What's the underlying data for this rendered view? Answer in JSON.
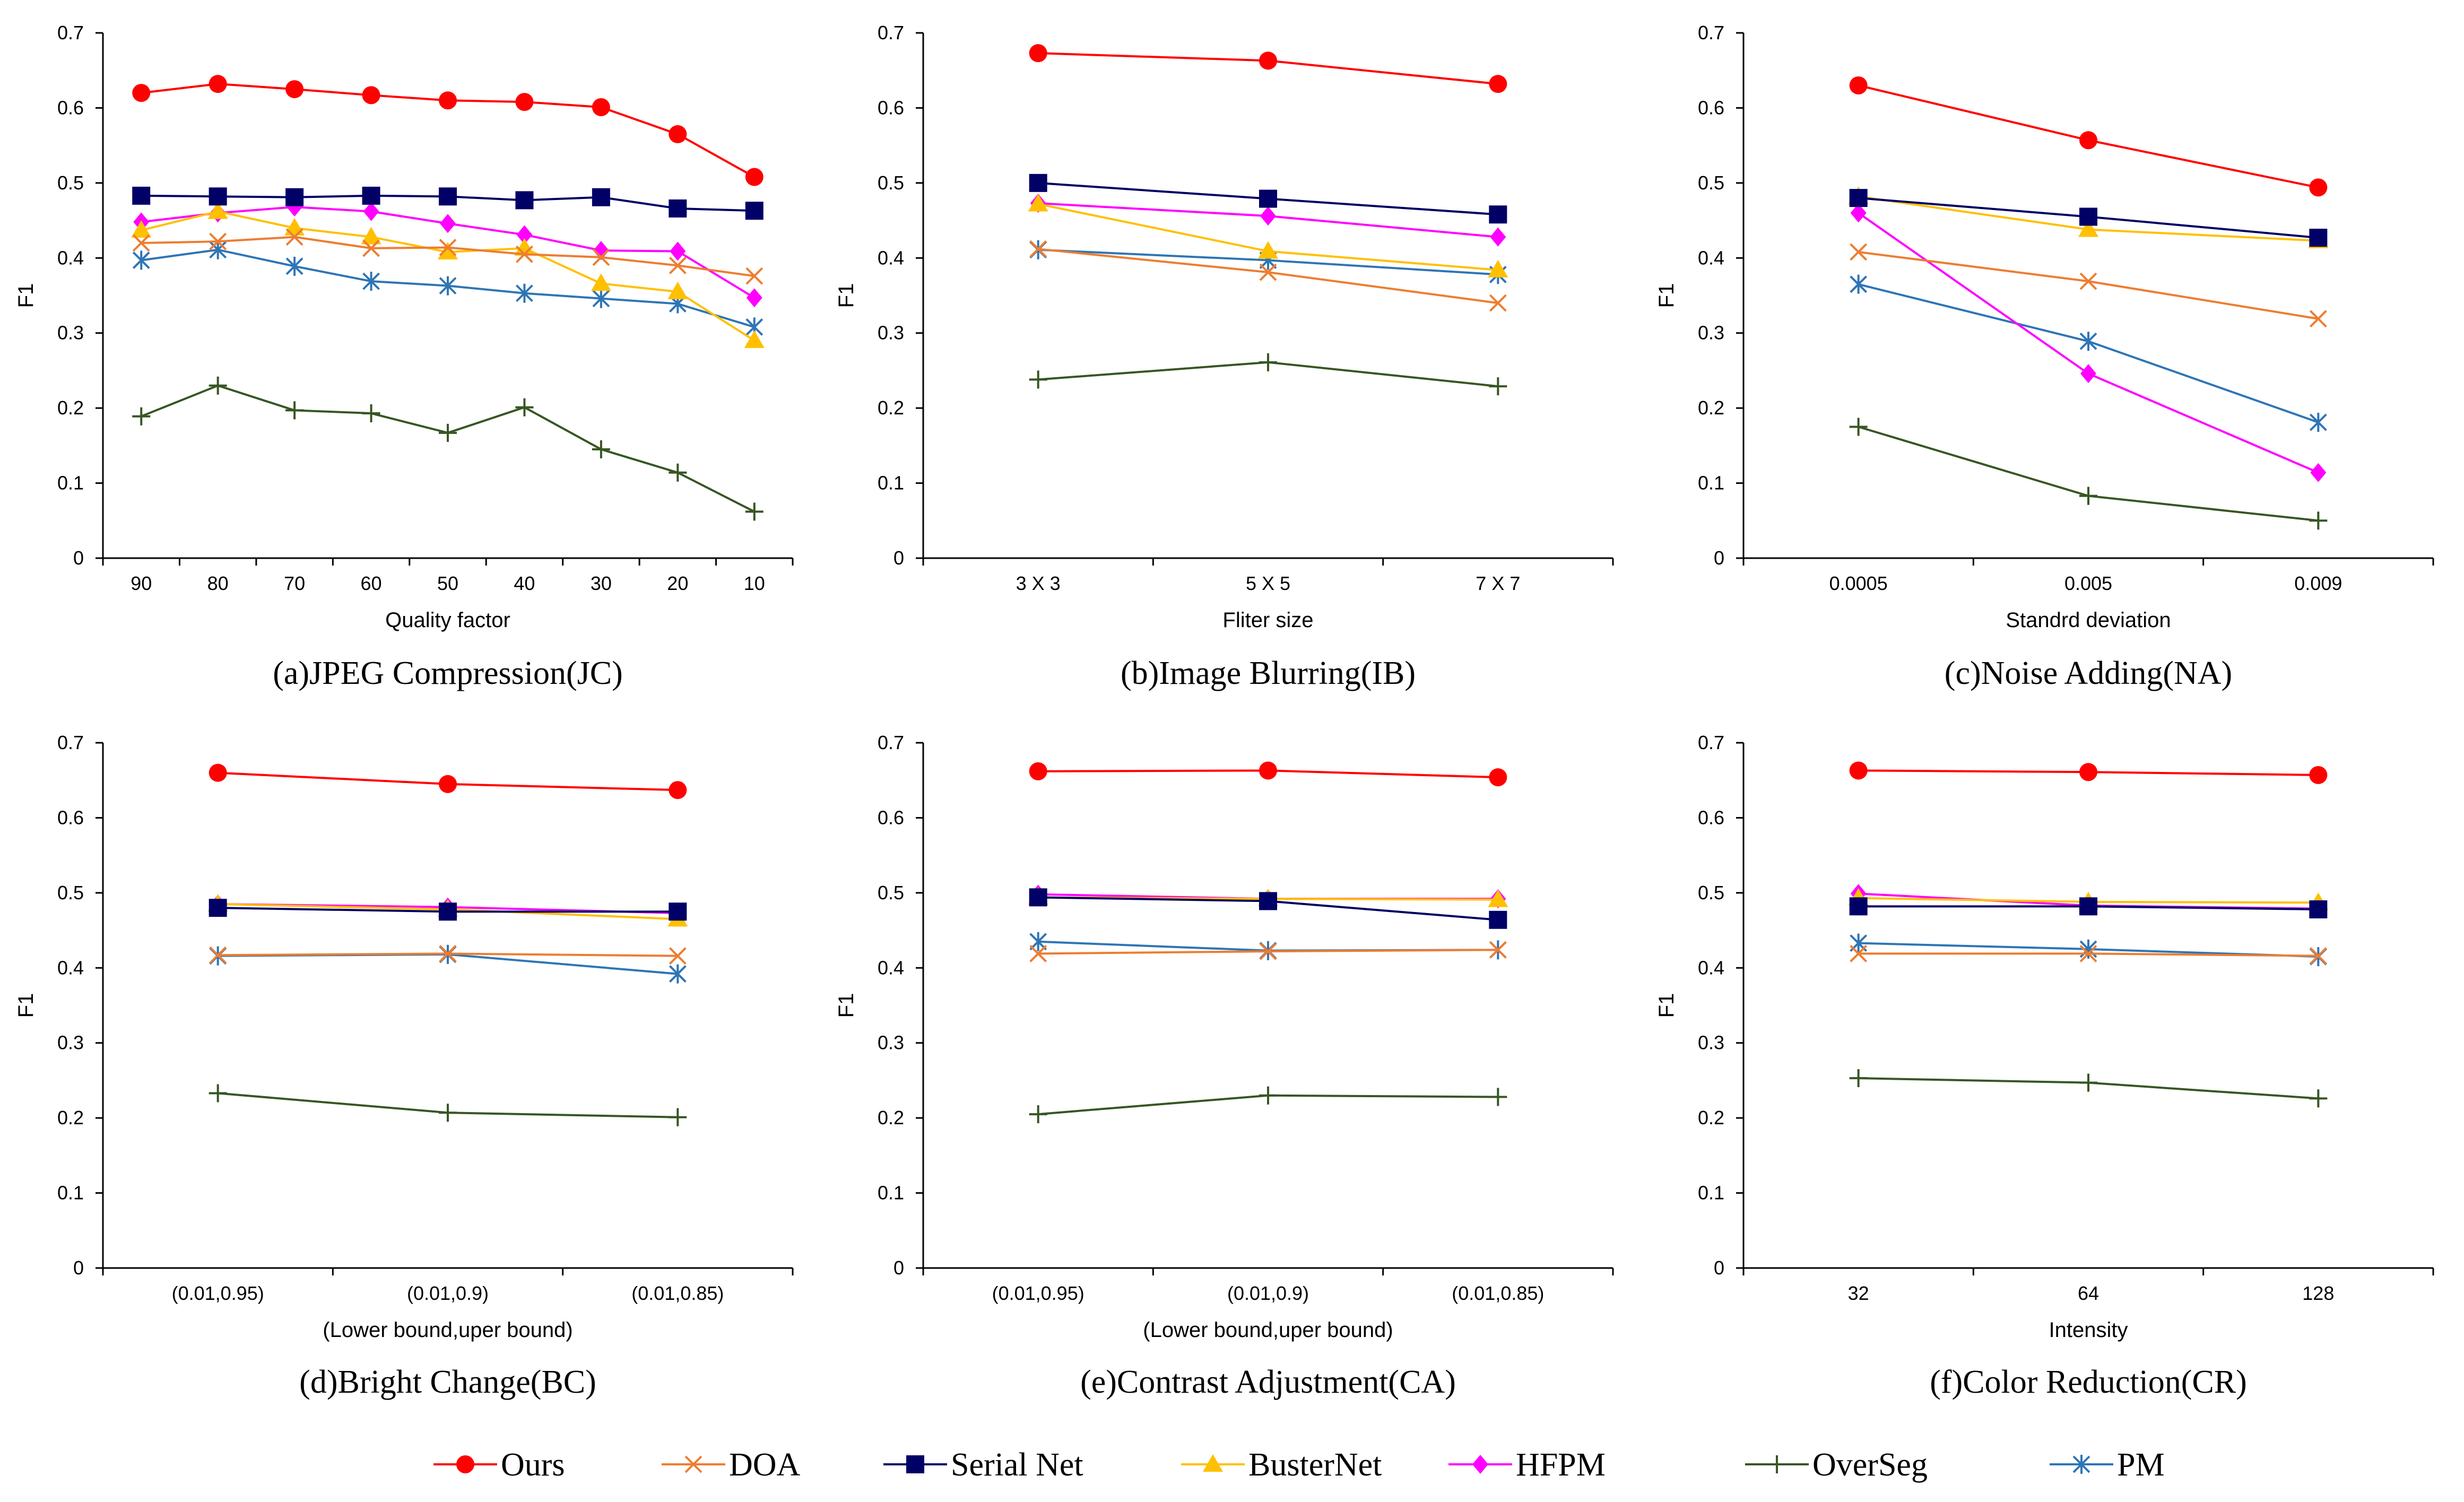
{
  "series_styles": [
    {
      "name": "Ours",
      "color": "#ff0000",
      "marker": "circle"
    },
    {
      "name": "DOA",
      "color": "#ed7d31",
      "marker": "x"
    },
    {
      "name": "Serial Net",
      "color": "#000066",
      "marker": "square"
    },
    {
      "name": "BusterNet",
      "color": "#ffc000",
      "marker": "triangle"
    },
    {
      "name": "HFPM",
      "color": "#ff00ff",
      "marker": "diamond"
    },
    {
      "name": "OverSeg",
      "color": "#375623",
      "marker": "plus"
    },
    {
      "name": "PM",
      "color": "#2e75b6",
      "marker": "star"
    }
  ],
  "legend": {
    "entries": [
      "Ours",
      "DOA",
      "Serial Net",
      "BusterNet",
      "HFPM",
      "OverSeg",
      "PM"
    ],
    "position": "bottom-center"
  },
  "chart_data": [
    {
      "type": "line",
      "caption": "(a)JPEG Compression(JC)",
      "xlabel": "Quality factor",
      "ylabel": "F1",
      "ylim": [
        0,
        0.7
      ],
      "yticks": [
        "0",
        "0.1",
        "0.2",
        "0.3",
        "0.4",
        "0.5",
        "0.6",
        "0.7"
      ],
      "categories": [
        "90",
        "80",
        "70",
        "60",
        "50",
        "40",
        "30",
        "20",
        "10"
      ],
      "series": [
        {
          "name": "Ours",
          "values": [
            0.62,
            0.632,
            0.625,
            0.617,
            0.61,
            0.608,
            0.601,
            0.565,
            0.508
          ]
        },
        {
          "name": "DOA",
          "values": [
            0.42,
            0.422,
            0.428,
            0.413,
            0.414,
            0.405,
            0.401,
            0.39,
            0.376
          ]
        },
        {
          "name": "Serial Net",
          "values": [
            0.483,
            0.482,
            0.481,
            0.483,
            0.482,
            0.477,
            0.481,
            0.466,
            0.463
          ]
        },
        {
          "name": "BusterNet",
          "values": [
            0.437,
            0.462,
            0.44,
            0.428,
            0.408,
            0.413,
            0.366,
            0.355,
            0.29
          ]
        },
        {
          "name": "HFPM",
          "values": [
            0.448,
            0.46,
            0.468,
            0.462,
            0.446,
            0.431,
            0.41,
            0.409,
            0.347
          ]
        },
        {
          "name": "OverSeg",
          "values": [
            0.189,
            0.23,
            0.197,
            0.193,
            0.167,
            0.201,
            0.145,
            0.114,
            0.062
          ]
        },
        {
          "name": "PM",
          "values": [
            0.397,
            0.411,
            0.389,
            0.369,
            0.363,
            0.353,
            0.346,
            0.339,
            0.308
          ]
        }
      ]
    },
    {
      "type": "line",
      "caption": "(b)Image Blurring(IB)",
      "xlabel": "Fliter size",
      "ylabel": "F1",
      "ylim": [
        0,
        0.7
      ],
      "yticks": [
        "0",
        "0.1",
        "0.2",
        "0.3",
        "0.4",
        "0.5",
        "0.6",
        "0.7"
      ],
      "categories": [
        "3 X 3",
        "5 X 5",
        "7 X 7"
      ],
      "series": [
        {
          "name": "Ours",
          "values": [
            0.673,
            0.663,
            0.632
          ]
        },
        {
          "name": "DOA",
          "values": [
            0.412,
            0.381,
            0.34
          ]
        },
        {
          "name": "Serial Net",
          "values": [
            0.5,
            0.479,
            0.458
          ]
        },
        {
          "name": "BusterNet",
          "values": [
            0.472,
            0.409,
            0.384
          ]
        },
        {
          "name": "HFPM",
          "values": [
            0.473,
            0.456,
            0.428
          ]
        },
        {
          "name": "OverSeg",
          "values": [
            0.238,
            0.261,
            0.229
          ]
        },
        {
          "name": "PM",
          "values": [
            0.411,
            0.397,
            0.378
          ]
        }
      ]
    },
    {
      "type": "line",
      "caption": "(c)Noise Adding(NA)",
      "xlabel": "Standrd deviation",
      "ylabel": "F1",
      "ylim": [
        0,
        0.7
      ],
      "yticks": [
        "0",
        "0.1",
        "0.2",
        "0.3",
        "0.4",
        "0.5",
        "0.6",
        "0.7"
      ],
      "categories": [
        "0.0005",
        "0.005",
        "0.009"
      ],
      "series": [
        {
          "name": "Ours",
          "values": [
            0.63,
            0.557,
            0.494
          ]
        },
        {
          "name": "DOA",
          "values": [
            0.408,
            0.369,
            0.319
          ]
        },
        {
          "name": "Serial Net",
          "values": [
            0.48,
            0.455,
            0.427
          ]
        },
        {
          "name": "BusterNet",
          "values": [
            0.482,
            0.438,
            0.423
          ]
        },
        {
          "name": "HFPM",
          "values": [
            0.46,
            0.246,
            0.114
          ]
        },
        {
          "name": "OverSeg",
          "values": [
            0.175,
            0.083,
            0.05
          ]
        },
        {
          "name": "PM",
          "values": [
            0.365,
            0.289,
            0.181
          ]
        }
      ]
    },
    {
      "type": "line",
      "caption": "(d)Bright Change(BC)",
      "xlabel": "(Lower bound,uper bound)",
      "ylabel": "F1",
      "ylim": [
        0,
        0.7
      ],
      "yticks": [
        "0",
        "0.1",
        "0.2",
        "0.3",
        "0.4",
        "0.5",
        "0.6",
        "0.7"
      ],
      "categories": [
        "(0.01,0.95)",
        "(0.01,0.9)",
        "(0.01,0.85)"
      ],
      "series": [
        {
          "name": "Ours",
          "values": [
            0.66,
            0.645,
            0.637
          ]
        },
        {
          "name": "DOA",
          "values": [
            0.417,
            0.419,
            0.416
          ]
        },
        {
          "name": "Serial Net",
          "values": [
            0.48,
            0.475,
            0.475
          ]
        },
        {
          "name": "BusterNet",
          "values": [
            0.485,
            0.478,
            0.465
          ]
        },
        {
          "name": "HFPM",
          "values": [
            0.485,
            0.481,
            0.473
          ]
        },
        {
          "name": "OverSeg",
          "values": [
            0.233,
            0.207,
            0.201
          ]
        },
        {
          "name": "PM",
          "values": [
            0.416,
            0.418,
            0.392
          ]
        }
      ]
    },
    {
      "type": "line",
      "caption": "(e)Contrast Adjustment(CA)",
      "xlabel": "(Lower bound,uper bound)",
      "ylabel": "F1",
      "ylim": [
        0,
        0.7
      ],
      "yticks": [
        "0",
        "0.1",
        "0.2",
        "0.3",
        "0.4",
        "0.5",
        "0.6",
        "0.7"
      ],
      "categories": [
        "(0.01,0.95)",
        "(0.01,0.9)",
        "(0.01,0.85)"
      ],
      "series": [
        {
          "name": "Ours",
          "values": [
            0.662,
            0.663,
            0.654
          ]
        },
        {
          "name": "DOA",
          "values": [
            0.419,
            0.422,
            0.424
          ]
        },
        {
          "name": "Serial Net",
          "values": [
            0.494,
            0.489,
            0.464
          ]
        },
        {
          "name": "BusterNet",
          "values": [
            0.494,
            0.492,
            0.491
          ]
        },
        {
          "name": "HFPM",
          "values": [
            0.498,
            0.492,
            0.492
          ]
        },
        {
          "name": "OverSeg",
          "values": [
            0.205,
            0.23,
            0.228
          ]
        },
        {
          "name": "PM",
          "values": [
            0.435,
            0.423,
            0.424
          ]
        }
      ]
    },
    {
      "type": "line",
      "caption": "(f)Color Reduction(CR)",
      "xlabel": "Intensity",
      "ylabel": "F1",
      "ylim": [
        0,
        0.7
      ],
      "yticks": [
        "0",
        "0.1",
        "0.2",
        "0.3",
        "0.4",
        "0.5",
        "0.6",
        "0.7"
      ],
      "categories": [
        "32",
        "64",
        "128"
      ],
      "series": [
        {
          "name": "Ours",
          "values": [
            0.663,
            0.661,
            0.657
          ]
        },
        {
          "name": "DOA",
          "values": [
            0.419,
            0.419,
            0.416
          ]
        },
        {
          "name": "Serial Net",
          "values": [
            0.482,
            0.482,
            0.478
          ]
        },
        {
          "name": "BusterNet",
          "values": [
            0.493,
            0.488,
            0.487
          ]
        },
        {
          "name": "HFPM",
          "values": [
            0.499,
            0.483,
            0.479
          ]
        },
        {
          "name": "OverSeg",
          "values": [
            0.253,
            0.247,
            0.226
          ]
        },
        {
          "name": "PM",
          "values": [
            0.433,
            0.425,
            0.415
          ]
        }
      ]
    }
  ]
}
